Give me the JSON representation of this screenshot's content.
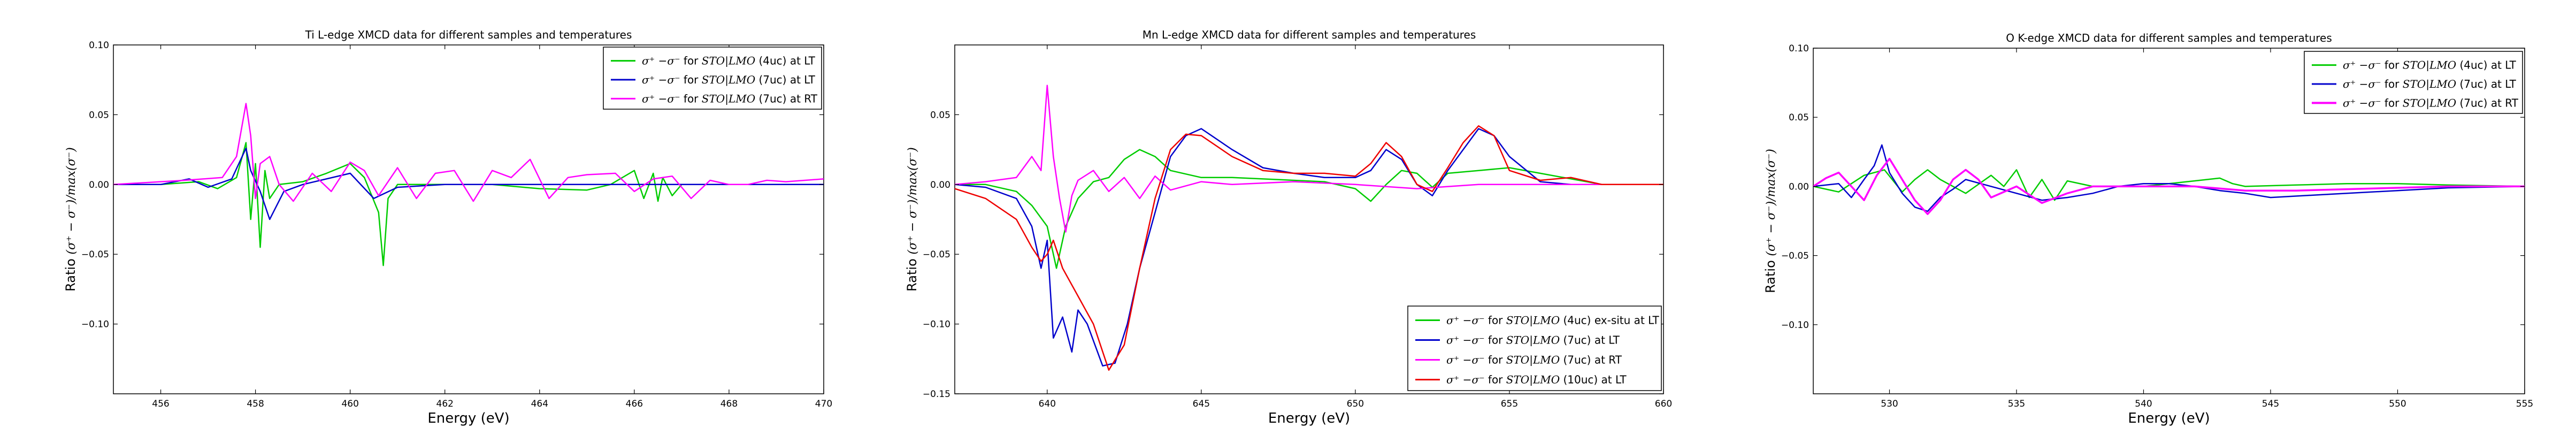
{
  "chart_data": [
    {
      "type": "line",
      "title": "Ti L-edge XMCD data for different samples and temperatures",
      "xlabel": "Energy (eV)",
      "ylabel": "Ratio (σ⁺ − σ⁻)/max(σ⁻)",
      "xlim": [
        455,
        470
      ],
      "ylim": [
        -0.15,
        0.1
      ],
      "xticks": [
        456,
        458,
        460,
        462,
        464,
        466,
        468,
        470
      ],
      "yticks": [
        -0.1,
        -0.05,
        0.0,
        0.05,
        0.1
      ],
      "yticklabels": [
        "−0.10",
        "−0.05",
        "0.00",
        "0.05",
        "0.10"
      ],
      "legend_position": "top-right",
      "series": [
        {
          "name": "σ⁺ −σ⁻  for STO|LMO (4uc) at LT",
          "color": "#00cc00",
          "x": [
            455.0,
            456.0,
            456.8,
            457.2,
            457.6,
            457.8,
            457.9,
            458.0,
            458.1,
            458.2,
            458.3,
            458.5,
            459.0,
            459.5,
            460.0,
            460.3,
            460.6,
            460.7,
            460.8,
            461.0,
            462.0,
            463.0,
            464.0,
            465.0,
            465.5,
            466.0,
            466.2,
            466.4,
            466.5,
            466.6,
            466.8,
            467.0,
            468.0,
            470.0
          ],
          "y": [
            0.0,
            0.0,
            0.002,
            -0.003,
            0.005,
            0.03,
            -0.025,
            0.015,
            -0.045,
            0.01,
            -0.01,
            0.0,
            0.002,
            0.008,
            0.015,
            0.005,
            -0.02,
            -0.058,
            -0.01,
            0.0,
            0.0,
            0.0,
            -0.003,
            -0.004,
            0.0,
            0.01,
            -0.01,
            0.008,
            -0.012,
            0.005,
            -0.008,
            0.0,
            0.0,
            0.0
          ]
        },
        {
          "name": "σ⁺ −σ⁻  for STO|LMO (7uc) at LT",
          "color": "#0000cc",
          "x": [
            455.0,
            456.0,
            456.6,
            457.0,
            457.5,
            457.8,
            457.9,
            458.1,
            458.3,
            458.6,
            459.0,
            460.0,
            460.5,
            461.0,
            462.0,
            464.0,
            466.0,
            468.0,
            470.0
          ],
          "y": [
            0.0,
            0.0,
            0.004,
            -0.002,
            0.004,
            0.026,
            0.01,
            -0.005,
            -0.025,
            -0.005,
            0.0,
            0.008,
            -0.01,
            -0.002,
            0.0,
            0.0,
            0.0,
            0.0,
            0.0
          ]
        },
        {
          "name": "σ⁺ −σ⁻  for STO|LMO (7uc) at RT",
          "color": "#ff00ff",
          "x": [
            455.0,
            456.5,
            457.3,
            457.6,
            457.8,
            457.9,
            458.0,
            458.1,
            458.3,
            458.5,
            458.8,
            459.2,
            459.6,
            460.0,
            460.3,
            460.6,
            461.0,
            461.4,
            461.8,
            462.2,
            462.6,
            463.0,
            463.4,
            463.8,
            464.2,
            464.6,
            465.0,
            465.6,
            466.0,
            466.4,
            466.8,
            467.2,
            467.6,
            468.0,
            468.4,
            468.8,
            469.2,
            470.0
          ],
          "y": [
            0.0,
            0.003,
            0.005,
            0.02,
            0.058,
            0.035,
            -0.01,
            0.015,
            0.02,
            0.0,
            -0.012,
            0.008,
            -0.005,
            0.016,
            0.01,
            -0.008,
            0.012,
            -0.01,
            0.008,
            0.01,
            -0.012,
            0.01,
            0.005,
            0.018,
            -0.01,
            0.005,
            0.007,
            0.008,
            -0.005,
            0.004,
            0.006,
            -0.01,
            0.003,
            0.0,
            0.0,
            0.003,
            0.002,
            0.004
          ]
        }
      ]
    },
    {
      "type": "line",
      "title": "Mn L-edge XMCD data for different samples and temperatures",
      "xlabel": "Energy (eV)",
      "ylabel": "Ratio (σ⁺ − σ⁻)/max(σ⁻)",
      "xlim": [
        637,
        660
      ],
      "ylim": [
        -0.15,
        0.1
      ],
      "xticks": [
        640,
        645,
        650,
        655,
        660
      ],
      "yticks": [
        -0.15,
        -0.1,
        -0.05,
        0.0,
        0.05
      ],
      "yticklabels": [
        "−0.15",
        "−0.10",
        "−0.05",
        "0.00",
        "0.05"
      ],
      "legend_position": "bottom-right",
      "series": [
        {
          "name": "σ⁺ −σ⁻  for STO|LMO (4uc) ex-situ at LT",
          "color": "#00cc00",
          "x": [
            637.0,
            638.0,
            639.0,
            639.5,
            640.0,
            640.3,
            640.6,
            641.0,
            641.5,
            642.0,
            642.5,
            643.0,
            643.5,
            644.0,
            645.0,
            646.0,
            647.0,
            648.0,
            649.0,
            650.0,
            650.5,
            651.0,
            651.5,
            652.0,
            652.5,
            653.0,
            654.0,
            655.0,
            656.0,
            658.0,
            660.0
          ],
          "y": [
            0.0,
            0.0,
            -0.005,
            -0.015,
            -0.03,
            -0.06,
            -0.03,
            -0.01,
            0.002,
            0.005,
            0.018,
            0.025,
            0.02,
            0.01,
            0.005,
            0.005,
            0.004,
            0.003,
            0.002,
            -0.003,
            -0.012,
            0.0,
            0.01,
            0.008,
            -0.002,
            0.008,
            0.01,
            0.012,
            0.008,
            0.0,
            0.0
          ]
        },
        {
          "name": "σ⁺ −σ⁻  for STO|LMO (7uc) at LT",
          "color": "#0000cc",
          "x": [
            637.0,
            638.0,
            639.0,
            639.5,
            639.8,
            640.0,
            640.2,
            640.5,
            640.8,
            641.0,
            641.3,
            641.8,
            642.2,
            642.6,
            643.0,
            643.5,
            644.0,
            644.5,
            645.0,
            646.0,
            647.0,
            648.0,
            649.0,
            650.0,
            650.5,
            651.0,
            651.5,
            652.0,
            652.5,
            653.0,
            653.5,
            654.0,
            654.5,
            655.0,
            656.0,
            657.0,
            660.0
          ],
          "y": [
            0.0,
            -0.002,
            -0.01,
            -0.03,
            -0.06,
            -0.04,
            -0.11,
            -0.095,
            -0.12,
            -0.09,
            -0.1,
            -0.13,
            -0.128,
            -0.1,
            -0.06,
            -0.02,
            0.02,
            0.035,
            0.04,
            0.025,
            0.012,
            0.008,
            0.005,
            0.005,
            0.01,
            0.025,
            0.018,
            0.0,
            -0.008,
            0.01,
            0.025,
            0.04,
            0.035,
            0.02,
            0.002,
            0.0,
            0.0
          ]
        },
        {
          "name": "σ⁺ −σ⁻  for STO|LMO (7uc) at RT",
          "color": "#ff00ff",
          "x": [
            637.0,
            638.0,
            639.0,
            639.5,
            639.8,
            640.0,
            640.2,
            640.4,
            640.6,
            640.8,
            641.0,
            641.5,
            642.0,
            642.5,
            643.0,
            643.5,
            644.0,
            645.0,
            646.0,
            648.0,
            650.0,
            652.0,
            654.0,
            656.0,
            658.0,
            660.0
          ],
          "y": [
            0.0,
            0.002,
            0.005,
            0.02,
            0.01,
            0.071,
            0.02,
            -0.01,
            -0.034,
            -0.008,
            0.003,
            0.01,
            -0.005,
            0.005,
            -0.01,
            0.006,
            -0.004,
            0.002,
            0.0,
            0.002,
            0.0,
            -0.003,
            0.0,
            0.0,
            0.0,
            0.0
          ]
        },
        {
          "name": "σ⁺ −σ⁻  for STO|LMO (10uc) at LT",
          "color": "#ee0000",
          "x": [
            637.0,
            638.0,
            639.0,
            639.5,
            639.8,
            640.0,
            640.2,
            640.5,
            641.0,
            641.5,
            642.0,
            642.5,
            643.0,
            643.5,
            644.0,
            644.5,
            645.0,
            646.0,
            647.0,
            648.0,
            649.0,
            650.0,
            650.5,
            651.0,
            651.5,
            652.0,
            652.5,
            653.0,
            653.5,
            654.0,
            654.5,
            655.0,
            656.0,
            657.0,
            658.0,
            660.0
          ],
          "y": [
            -0.003,
            -0.01,
            -0.025,
            -0.045,
            -0.055,
            -0.05,
            -0.04,
            -0.06,
            -0.08,
            -0.1,
            -0.133,
            -0.115,
            -0.06,
            -0.01,
            0.025,
            0.036,
            0.035,
            0.02,
            0.01,
            0.008,
            0.008,
            0.006,
            0.015,
            0.03,
            0.02,
            0.0,
            -0.005,
            0.012,
            0.03,
            0.042,
            0.035,
            0.01,
            0.003,
            0.005,
            0.0,
            0.0
          ]
        }
      ]
    },
    {
      "type": "line",
      "title": "O K-edge XMCD data for different samples and temperatures",
      "xlabel": "Energy (eV)",
      "ylabel": "Ratio (σ⁺ − σ⁻)/max(σ⁻)",
      "xlim": [
        527,
        555
      ],
      "ylim": [
        -0.15,
        0.1
      ],
      "xticks": [
        530,
        535,
        540,
        545,
        550,
        555
      ],
      "yticks": [
        -0.1,
        -0.05,
        0.0,
        0.05,
        0.1
      ],
      "yticklabels": [
        "−0.10",
        "−0.05",
        "0.00",
        "0.05",
        "0.10"
      ],
      "legend_position": "top-right",
      "series": [
        {
          "name": "σ⁺ −σ⁻  for STO|LMO (4uc) at LT",
          "color": "#00cc00",
          "x": [
            527.0,
            528.0,
            529.0,
            529.8,
            530.5,
            531.0,
            531.5,
            532.0,
            533.0,
            534.0,
            534.5,
            535.0,
            535.5,
            536.0,
            536.5,
            537.0,
            538.0,
            539.0,
            540.0,
            541.0,
            542.0,
            543.0,
            543.5,
            544.0,
            546.0,
            548.0,
            550.0,
            552.0,
            555.0
          ],
          "y": [
            0.0,
            -0.004,
            0.008,
            0.012,
            -0.004,
            0.005,
            0.012,
            0.005,
            -0.005,
            0.008,
            0.0,
            0.012,
            -0.008,
            0.005,
            -0.01,
            0.004,
            0.0,
            0.0,
            0.0,
            0.002,
            0.004,
            0.006,
            0.002,
            0.0,
            0.001,
            0.002,
            0.002,
            0.001,
            0.0
          ]
        },
        {
          "name": "σ⁺ −σ⁻  for STO|LMO (7uc) at LT",
          "color": "#0000cc",
          "x": [
            527.0,
            528.0,
            528.5,
            529.0,
            529.4,
            529.7,
            530.0,
            530.5,
            531.0,
            531.5,
            532.0,
            532.5,
            533.0,
            534.0,
            535.0,
            536.0,
            537.0,
            538.0,
            539.0,
            540.0,
            541.0,
            542.0,
            543.0,
            544.0,
            545.0,
            547.0,
            550.0,
            552.0,
            555.0
          ],
          "y": [
            0.0,
            0.002,
            -0.008,
            0.005,
            0.015,
            0.03,
            0.01,
            -0.005,
            -0.015,
            -0.018,
            -0.008,
            -0.002,
            0.005,
            0.0,
            -0.005,
            -0.01,
            -0.008,
            -0.005,
            0.0,
            0.002,
            0.002,
            0.0,
            -0.003,
            -0.005,
            -0.008,
            -0.006,
            -0.003,
            -0.001,
            0.0
          ]
        },
        {
          "name": "σ⁺ −σ⁻  for STO|LMO (7uc) at RT",
          "color": "#ff00ff",
          "x": [
            527.0,
            527.5,
            528.0,
            528.5,
            529.0,
            529.5,
            530.0,
            530.5,
            531.0,
            531.5,
            532.0,
            532.5,
            533.0,
            533.5,
            534.0,
            535.0,
            536.0,
            537.0,
            538.0,
            540.0,
            542.0,
            544.0,
            546.0,
            548.0,
            550.0,
            552.0,
            555.0
          ],
          "y": [
            0.0,
            0.006,
            0.01,
            0.0,
            -0.01,
            0.008,
            0.02,
            0.005,
            -0.01,
            -0.02,
            -0.01,
            0.005,
            0.012,
            0.005,
            -0.008,
            0.0,
            -0.012,
            -0.005,
            0.0,
            0.0,
            0.0,
            -0.003,
            -0.003,
            -0.002,
            -0.001,
            0.0,
            0.0
          ]
        }
      ]
    }
  ]
}
